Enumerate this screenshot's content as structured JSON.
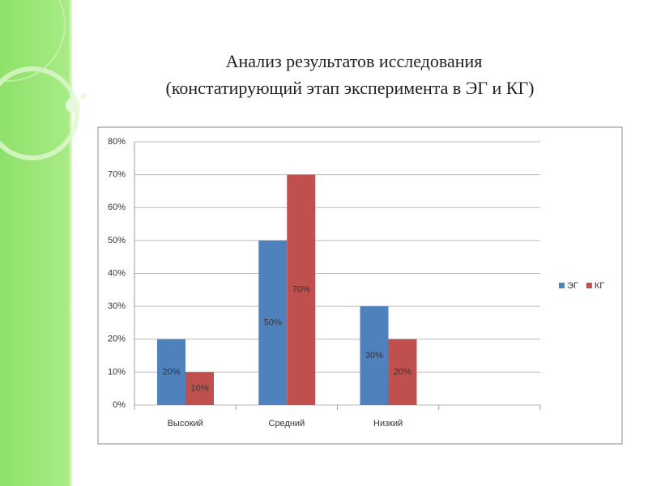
{
  "chart_data": {
    "type": "bar",
    "title": "Анализ результатов исследования",
    "subtitle": "(констатирующий этап эксперимента в ЭГ и КГ)",
    "categories": [
      "Высокий",
      "Средний",
      "Низкий",
      null
    ],
    "series": [
      {
        "name": "ЭГ",
        "color": "#4f81bd",
        "values": [
          20,
          50,
          30,
          null
        ],
        "value_labels": [
          "20%",
          "50%",
          "30%",
          null
        ]
      },
      {
        "name": "КГ",
        "color": "#c0504d",
        "values": [
          10,
          70,
          20,
          null
        ],
        "value_labels": [
          "10%",
          "70%",
          "20%",
          null
        ]
      }
    ],
    "ylim": [
      0,
      80
    ],
    "yticks": [
      {
        "value": 0,
        "label": "0%"
      },
      {
        "value": 10,
        "label": "10%"
      },
      {
        "value": 20,
        "label": "20%"
      },
      {
        "value": 30,
        "label": "30%"
      },
      {
        "value": 40,
        "label": "40%"
      },
      {
        "value": 50,
        "label": "50%"
      },
      {
        "value": 60,
        "label": "60%"
      },
      {
        "value": 70,
        "label": "70%"
      },
      {
        "value": 80,
        "label": "80%"
      }
    ],
    "grid": true,
    "legend": "right"
  }
}
